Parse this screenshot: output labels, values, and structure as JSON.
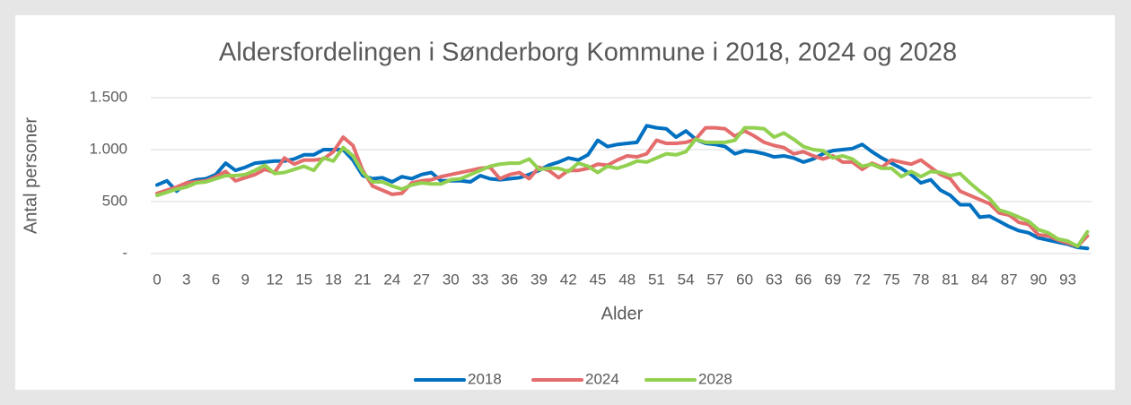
{
  "chart_data": {
    "type": "line",
    "title": "Aldersfordelingen i Sønderborg Kommune i 2018, 2024 og 2028",
    "y_label": "Antal personer",
    "x_label": "Alder",
    "categories": [
      "0",
      null,
      null,
      "3",
      null,
      null,
      "6",
      null,
      null,
      "9",
      null,
      null,
      "12",
      null,
      null,
      "15",
      null,
      null,
      "18",
      null,
      null,
      "21",
      null,
      null,
      "24",
      null,
      null,
      "27",
      null,
      null,
      "30",
      null,
      null,
      "33",
      null,
      null,
      "36",
      null,
      null,
      "39",
      null,
      null,
      "42",
      null,
      null,
      "45",
      null,
      null,
      "48",
      null,
      null,
      "51",
      null,
      null,
      "54",
      null,
      null,
      "57",
      null,
      null,
      "60",
      null,
      null,
      "63",
      null,
      null,
      "66",
      null,
      null,
      "69",
      null,
      null,
      "72",
      null,
      null,
      "75",
      null,
      null,
      "78",
      null,
      null,
      "81",
      null,
      null,
      "84",
      null,
      null,
      "87",
      null,
      null,
      "90",
      null,
      null,
      "93",
      null,
      null
    ],
    "series": [
      {
        "name": "2018",
        "color": "#0070c0",
        "values": [
          660,
          700,
          600,
          680,
          710,
          720,
          760,
          870,
          800,
          830,
          870,
          880,
          890,
          890,
          910,
          950,
          950,
          1000,
          1000,
          1000,
          900,
          750,
          720,
          730,
          690,
          740,
          720,
          760,
          780,
          700,
          700,
          700,
          690,
          750,
          720,
          710,
          720,
          730,
          760,
          800,
          850,
          880,
          920,
          900,
          950,
          1090,
          1030,
          1050,
          1060,
          1070,
          1230,
          1210,
          1200,
          1120,
          1180,
          1100,
          1060,
          1050,
          1030,
          960,
          990,
          980,
          960,
          930,
          940,
          920,
          880,
          910,
          960,
          990,
          1000,
          1010,
          1050,
          980,
          920,
          870,
          820,
          760,
          680,
          710,
          610,
          560,
          470,
          470,
          350,
          360,
          310,
          260,
          220,
          200,
          150,
          130,
          110,
          90,
          60,
          50
        ]
      },
      {
        "name": "2024",
        "color": "#e46c6c",
        "values": [
          580,
          610,
          640,
          680,
          690,
          700,
          740,
          790,
          700,
          730,
          760,
          810,
          780,
          920,
          860,
          900,
          900,
          910,
          980,
          1120,
          1040,
          800,
          650,
          610,
          570,
          580,
          680,
          700,
          710,
          740,
          760,
          780,
          800,
          820,
          830,
          720,
          760,
          780,
          720,
          830,
          800,
          730,
          800,
          800,
          820,
          860,
          850,
          900,
          940,
          930,
          960,
          1090,
          1060,
          1060,
          1070,
          1100,
          1210,
          1210,
          1200,
          1130,
          1180,
          1130,
          1070,
          1040,
          1020,
          960,
          980,
          940,
          910,
          940,
          880,
          880,
          810,
          870,
          830,
          900,
          880,
          860,
          900,
          830,
          760,
          720,
          600,
          560,
          520,
          480,
          390,
          370,
          300,
          280,
          180,
          170,
          130,
          100,
          70,
          170
        ]
      },
      {
        "name": "2028",
        "color": "#92d050",
        "values": [
          560,
          590,
          620,
          640,
          680,
          690,
          720,
          750,
          750,
          760,
          800,
          850,
          770,
          780,
          810,
          840,
          800,
          920,
          890,
          1020,
          940,
          780,
          690,
          690,
          650,
          620,
          660,
          680,
          670,
          670,
          710,
          720,
          760,
          800,
          840,
          860,
          870,
          870,
          910,
          810,
          820,
          820,
          790,
          870,
          840,
          780,
          840,
          820,
          850,
          890,
          880,
          920,
          960,
          950,
          980,
          1100,
          1070,
          1070,
          1070,
          1090,
          1210,
          1210,
          1200,
          1120,
          1160,
          1100,
          1030,
          1000,
          990,
          920,
          940,
          910,
          840,
          860,
          820,
          820,
          740,
          790,
          740,
          790,
          780,
          750,
          770,
          680,
          600,
          530,
          420,
          390,
          350,
          310,
          230,
          200,
          140,
          120,
          70,
          210
        ]
      }
    ],
    "ylim": [
      0,
      1500
    ],
    "yticks": [
      {
        "value": 0,
        "label": "-"
      },
      500,
      {
        "value": 1000,
        "label": "1.000"
      },
      {
        "value": 1500,
        "label": "1.500"
      }
    ],
    "grid": true,
    "legend": "bottom"
  }
}
